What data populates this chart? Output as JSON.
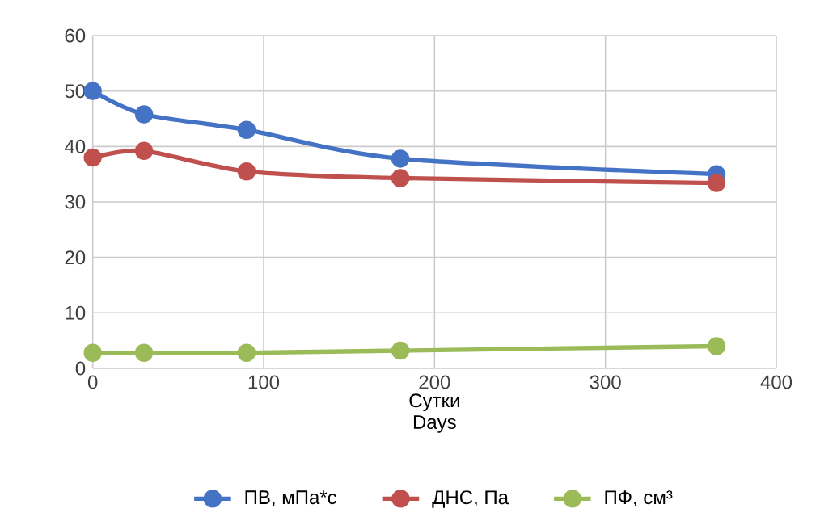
{
  "chart_data": {
    "type": "line",
    "xlabel": "Сутки Days",
    "x": [
      0,
      30,
      90,
      180,
      365
    ],
    "series": [
      {
        "name": "ПВ, мПа*с",
        "color": "#4472c4",
        "values": [
          50,
          45.8,
          43,
          37.8,
          35
        ]
      },
      {
        "name": "ДНС, Па",
        "color": "#c0504d",
        "values": [
          38,
          39.2,
          35.5,
          34.3,
          33.4
        ]
      },
      {
        "name": "ПФ, см³",
        "color": "#9bbb59",
        "values": [
          2.8,
          2.8,
          2.8,
          3.2,
          4.0
        ]
      }
    ],
    "xlim": [
      0,
      400
    ],
    "ylim": [
      0,
      60
    ],
    "xticks": [
      0,
      100,
      200,
      300,
      400
    ],
    "yticks": [
      0,
      10,
      20,
      30,
      40,
      50,
      60
    ],
    "grid": true,
    "legend": "bottom",
    "marker": "circle",
    "line_style": "solid"
  }
}
